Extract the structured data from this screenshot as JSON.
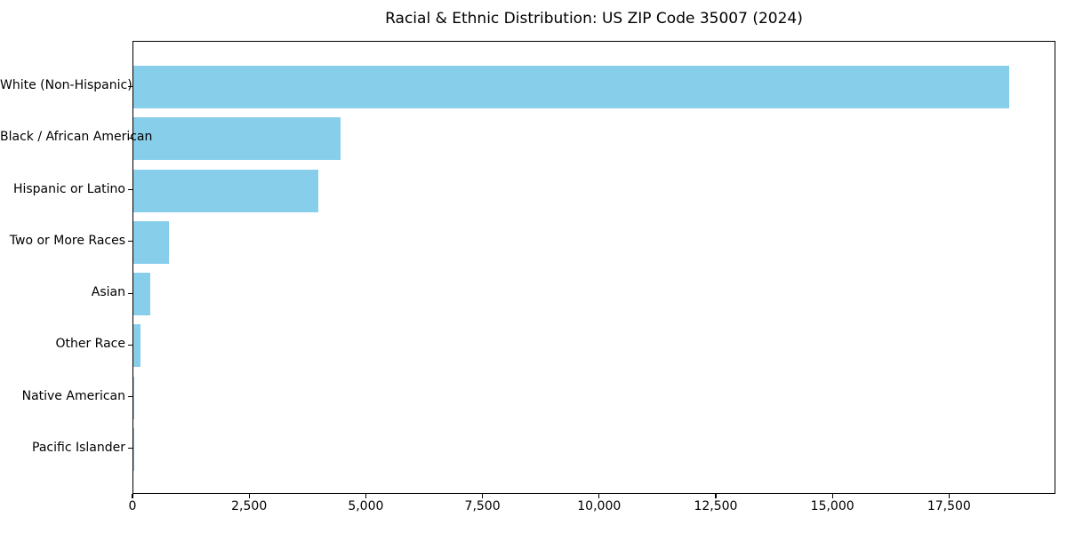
{
  "page": {
    "background_color": "#ffffff",
    "text_color": "#000000",
    "axis_color": "#000000"
  },
  "chart_data": {
    "type": "bar",
    "orientation": "horizontal",
    "title": "Racial & Ethnic Distribution: US ZIP Code 35007 (2024)",
    "xlabel": "",
    "ylabel": "",
    "categories": [
      "White (Non-Hispanic)",
      "Black / African American",
      "Hispanic or Latino",
      "Two or More Races",
      "Asian",
      "Other Race",
      "Native American",
      "Pacific Islander"
    ],
    "values": [
      18800,
      4440,
      3980,
      760,
      360,
      150,
      20,
      10
    ],
    "bar_color": "#87ceeb",
    "xlim": [
      0,
      19780
    ],
    "x_ticks": [
      0,
      2500,
      5000,
      7500,
      10000,
      12500,
      15000,
      17500
    ],
    "x_tick_labels": [
      "0",
      "2,500",
      "5,000",
      "7,500",
      "10,000",
      "12,500",
      "15,000",
      "17,500"
    ],
    "grid": false,
    "legend": null
  }
}
